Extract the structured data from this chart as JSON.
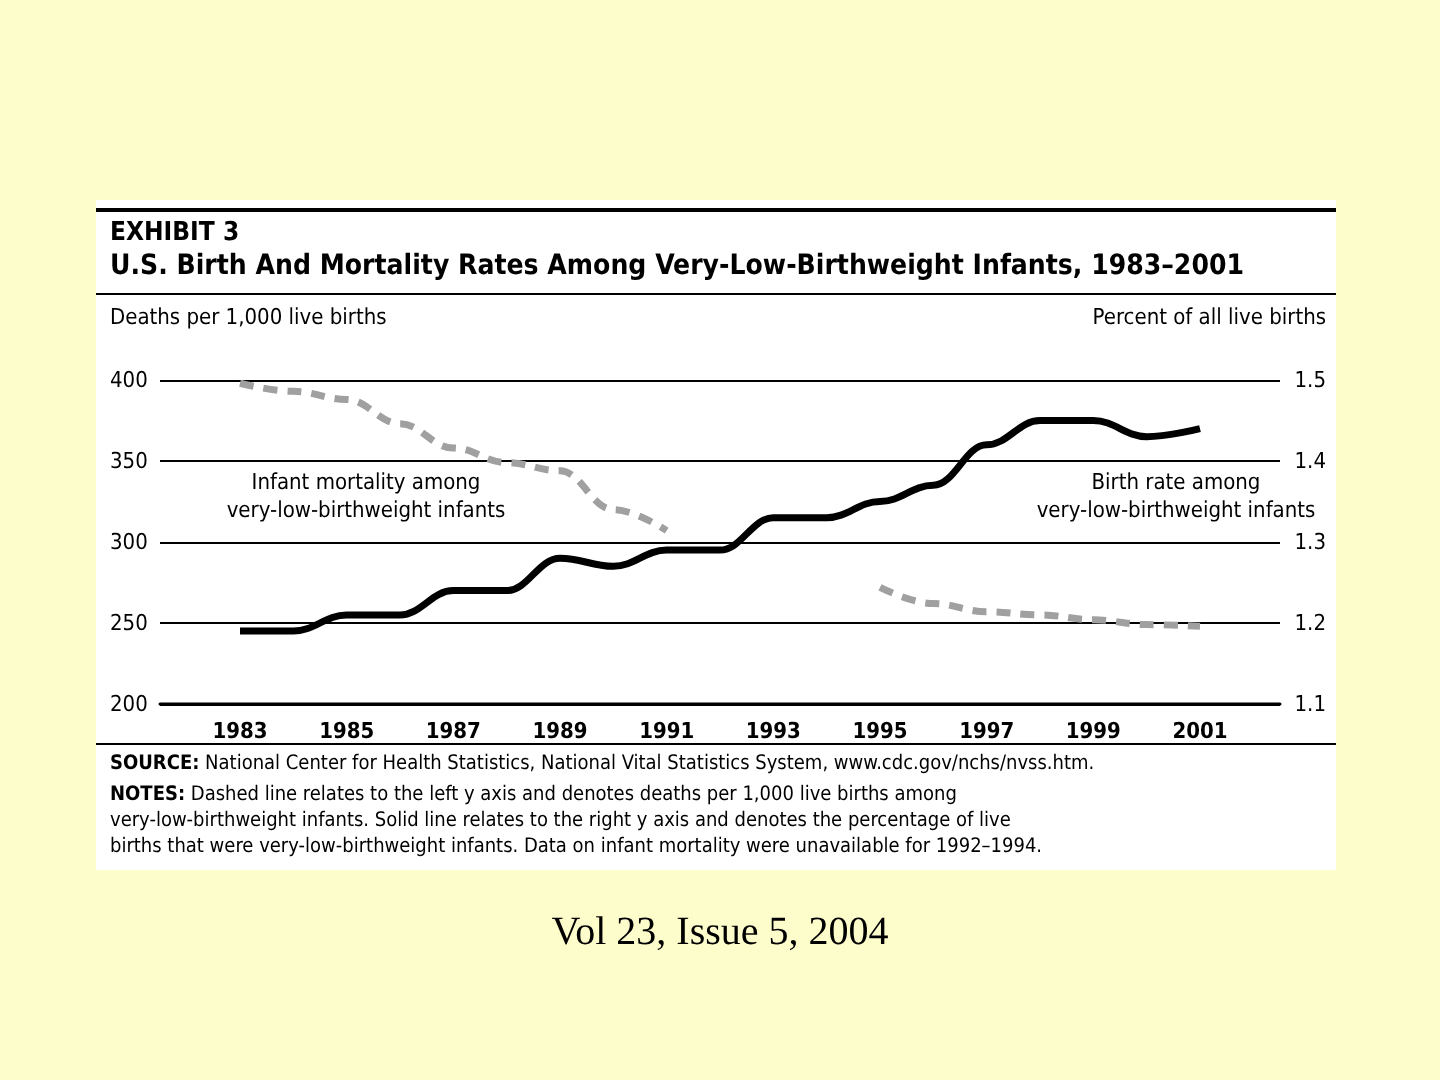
{
  "chart_data": {
    "type": "line",
    "title": "EXHIBIT 3",
    "subtitle": "U.S. Birth And Mortality Rates Among Very-Low-Birthweight Infants, 1983–2001",
    "ylabel": "Deaths per 1,000 live births",
    "y2label": "Percent of all live births",
    "x": [
      1983,
      1984,
      1985,
      1986,
      1987,
      1988,
      1989,
      1990,
      1991,
      1992,
      1993,
      1994,
      1995,
      1996,
      1997,
      1998,
      1999,
      2000,
      2001
    ],
    "xlim": [
      1981.5,
      2002.5
    ],
    "xticks": [
      1983,
      1985,
      1987,
      1989,
      1991,
      1993,
      1995,
      1997,
      1999,
      2001
    ],
    "ylim": [
      200,
      400
    ],
    "yticks": [
      200,
      250,
      300,
      350,
      400
    ],
    "y2lim": [
      1.1,
      1.5
    ],
    "y2ticks": [
      1.1,
      1.2,
      1.3,
      1.4,
      1.5
    ],
    "grid": "y",
    "legend": false,
    "series": [
      {
        "name": "Infant mortality among very-low-birthweight infants",
        "color": "#a0a0a0",
        "line_style": "dashed",
        "values": [
          398,
          393,
          388,
          373,
          358,
          349,
          344,
          320,
          307,
          null,
          null,
          null,
          272,
          262,
          257,
          255,
          252,
          249,
          248
        ]
      },
      {
        "name": "Birth rate among very-low-birthweight infants",
        "color": "#000000",
        "line_style": "solid",
        "axis": "y2",
        "values": [
          1.19,
          1.19,
          1.21,
          1.21,
          1.24,
          1.24,
          1.28,
          1.27,
          1.29,
          1.29,
          1.33,
          1.33,
          1.35,
          1.37,
          1.42,
          1.45,
          1.45,
          1.43,
          1.44
        ]
      }
    ],
    "annotations": [
      "SOURCE: National Center for Health Statistics, National Vital Statistics System, www.cdc.gov/nchs/nvss.htm.",
      "NOTES: Dashed line relates to the left y axis and denotes deaths per 1,000 live births among very-low-birthweight infants. Solid line relates to the right y axis and denotes the percentage of live births that were very-low-birthweight infants. Data on infant mortality were unavailable for 1992–1994.",
      "Vol 23, Issue 5, 2004"
    ]
  }
}
